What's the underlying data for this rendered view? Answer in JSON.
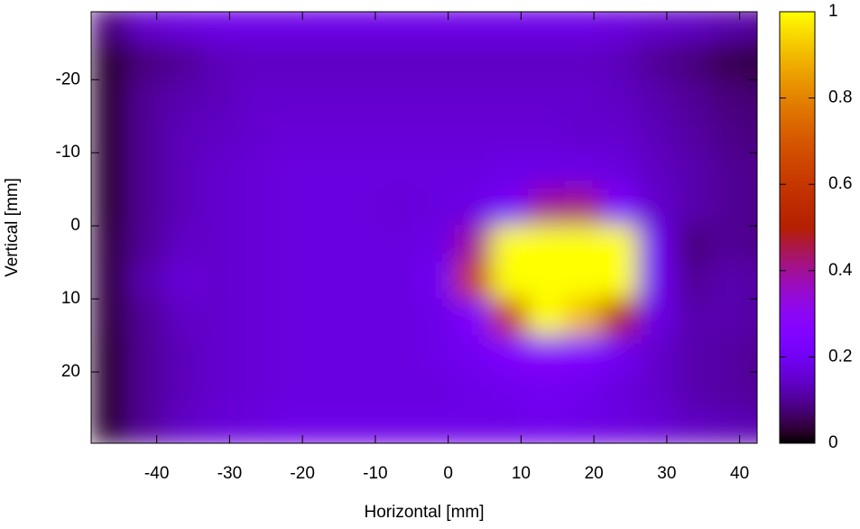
{
  "chart_data": {
    "type": "heatmap",
    "xlabel": "Horizontal [mm]",
    "ylabel": "Vertical [mm]",
    "x": [
      -46.5,
      -41.5,
      -36.5,
      -31.5,
      -26.5,
      -21.5,
      -16.5,
      -11.5,
      -6.5,
      -1.5,
      3.5,
      8.5,
      13.5,
      18.5,
      23.5,
      28.5,
      33.5,
      38.5,
      43.5
    ],
    "y": [
      -27.5,
      -22.5,
      -17.5,
      -12.5,
      -7.5,
      -2.5,
      2.5,
      7.5,
      12.5,
      17.5,
      22.5,
      27.5
    ],
    "z": [
      [
        0.08,
        0.15,
        0.17,
        0.18,
        0.18,
        0.18,
        0.18,
        0.18,
        0.18,
        0.18,
        0.18,
        0.18,
        0.18,
        0.18,
        0.17,
        0.15,
        0.14,
        0.12,
        0.1
      ],
      [
        0.03,
        0.08,
        0.1,
        0.13,
        0.14,
        0.14,
        0.14,
        0.14,
        0.14,
        0.14,
        0.14,
        0.14,
        0.14,
        0.14,
        0.13,
        0.1,
        0.08,
        0.05,
        0.04
      ],
      [
        0.03,
        0.1,
        0.12,
        0.13,
        0.15,
        0.15,
        0.15,
        0.15,
        0.15,
        0.15,
        0.15,
        0.15,
        0.15,
        0.15,
        0.14,
        0.12,
        0.1,
        0.08,
        0.07
      ],
      [
        0.03,
        0.1,
        0.13,
        0.14,
        0.15,
        0.16,
        0.16,
        0.16,
        0.16,
        0.16,
        0.16,
        0.16,
        0.16,
        0.15,
        0.15,
        0.13,
        0.11,
        0.09,
        0.08
      ],
      [
        0.03,
        0.1,
        0.13,
        0.15,
        0.16,
        0.17,
        0.17,
        0.17,
        0.17,
        0.17,
        0.17,
        0.18,
        0.18,
        0.18,
        0.17,
        0.14,
        0.12,
        0.1,
        0.09
      ],
      [
        0.03,
        0.1,
        0.13,
        0.15,
        0.16,
        0.17,
        0.17,
        0.17,
        0.16,
        0.17,
        0.18,
        0.22,
        0.4,
        0.42,
        0.25,
        0.15,
        0.12,
        0.1,
        0.09
      ],
      [
        0.04,
        0.1,
        0.14,
        0.15,
        0.16,
        0.17,
        0.17,
        0.17,
        0.17,
        0.18,
        0.4,
        1,
        1,
        1,
        1,
        0.2,
        0.08,
        0.1,
        0.09
      ],
      [
        0.04,
        0.12,
        0.16,
        0.15,
        0.16,
        0.17,
        0.17,
        0.17,
        0.17,
        0.2,
        0.6,
        1,
        1,
        1,
        1,
        0.2,
        0.1,
        0.12,
        0.11
      ],
      [
        0.04,
        0.1,
        0.14,
        0.15,
        0.16,
        0.17,
        0.17,
        0.17,
        0.17,
        0.18,
        0.25,
        0.6,
        1,
        0.9,
        0.5,
        0.18,
        0.12,
        0.12,
        0.11
      ],
      [
        0.03,
        0.1,
        0.13,
        0.15,
        0.16,
        0.17,
        0.17,
        0.17,
        0.17,
        0.18,
        0.2,
        0.25,
        0.28,
        0.25,
        0.2,
        0.15,
        0.12,
        0.11,
        0.1
      ],
      [
        0.03,
        0.1,
        0.13,
        0.15,
        0.16,
        0.17,
        0.17,
        0.17,
        0.17,
        0.17,
        0.18,
        0.19,
        0.2,
        0.19,
        0.17,
        0.15,
        0.12,
        0.11,
        0.1
      ],
      [
        0.03,
        0.1,
        0.14,
        0.16,
        0.17,
        0.18,
        0.18,
        0.18,
        0.18,
        0.18,
        0.18,
        0.18,
        0.19,
        0.18,
        0.17,
        0.16,
        0.14,
        0.13,
        0.12
      ]
    ],
    "xlim": [
      -49,
      42.4
    ],
    "xticks": [
      -40,
      -30,
      -20,
      -10,
      0,
      10,
      20,
      30,
      40
    ],
    "ylim": [
      29.75,
      -29.3
    ],
    "yticks": [
      -20,
      -10,
      0,
      10,
      20
    ],
    "zlim": [
      0,
      1
    ],
    "zticks": [
      0,
      0.2,
      0.4,
      0.6,
      0.8,
      1
    ],
    "palette": "gnuplot"
  }
}
